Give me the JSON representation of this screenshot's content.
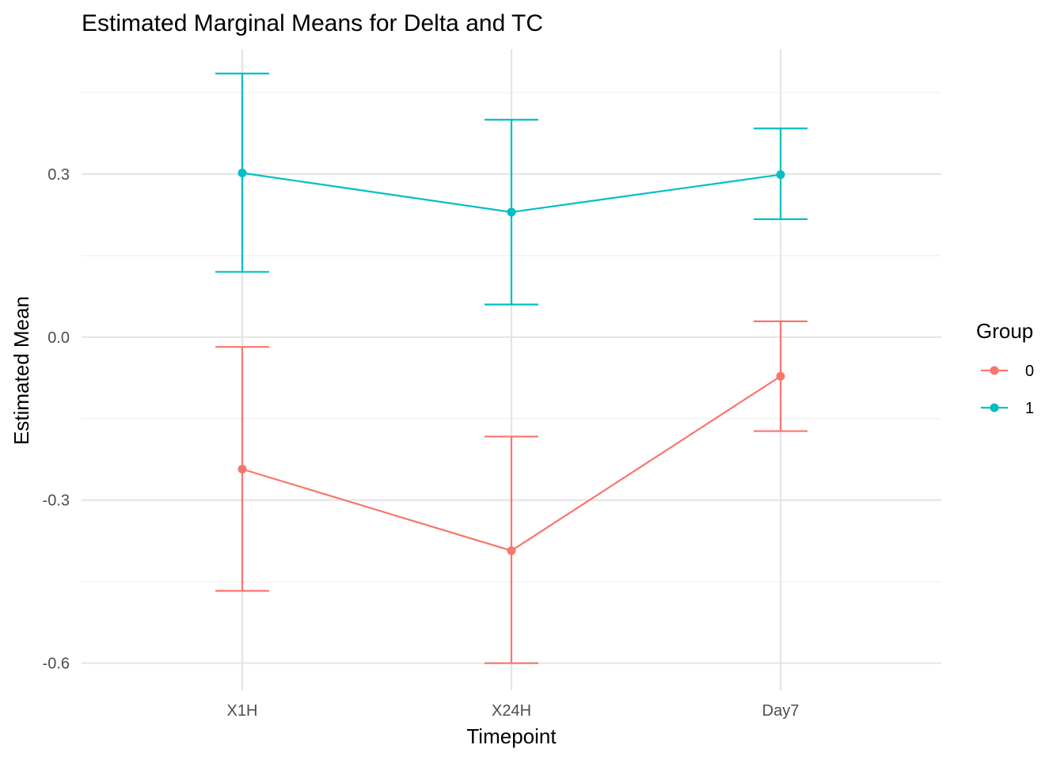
{
  "chart_data": {
    "type": "line",
    "title": "Estimated Marginal Means for Delta and TC",
    "xlabel": "Timepoint",
    "ylabel": "Estimated Mean",
    "categories": [
      "X1H",
      "X24H",
      "Day7"
    ],
    "ylim": [
      -0.65,
      0.53
    ],
    "yticks": [
      -0.6,
      -0.3,
      0.0,
      0.3
    ],
    "ytick_labels": [
      "-0.6",
      "-0.3",
      "0.0",
      "0.3"
    ],
    "grid": true,
    "legend": {
      "title": "Group",
      "position": "right"
    },
    "series": [
      {
        "name": "0",
        "color": "#F8766D",
        "values": [
          -0.243,
          -0.393,
          -0.072
        ],
        "lower": [
          -0.467,
          -0.6,
          -0.173
        ],
        "upper": [
          -0.018,
          -0.183,
          0.029
        ]
      },
      {
        "name": "1",
        "color": "#00BFC4",
        "values": [
          0.302,
          0.23,
          0.299
        ],
        "lower": [
          0.12,
          0.06,
          0.217
        ],
        "upper": [
          0.485,
          0.4,
          0.384
        ]
      }
    ]
  }
}
